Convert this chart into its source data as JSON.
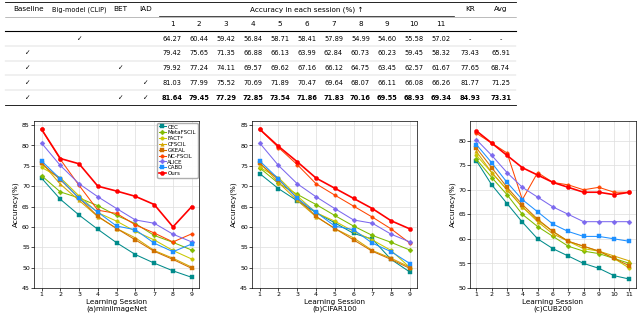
{
  "table": {
    "col1_labels": [
      "Baseline",
      "Big-model (CLIP)",
      "BET",
      "IAD"
    ],
    "session_cols": [
      "1",
      "2",
      "3",
      "4",
      "5",
      "6",
      "7",
      "8",
      "9",
      "10",
      "11"
    ],
    "extra_cols": [
      "KR",
      "Avg"
    ],
    "rows": [
      [
        " ",
        "✓",
        " ",
        " ",
        "64.27",
        "60.44",
        "59.42",
        "56.84",
        "58.71",
        "58.41",
        "57.89",
        "54.99",
        "54.60",
        "55.58",
        "57.02",
        "-",
        "-"
      ],
      [
        "✓",
        " ",
        " ",
        " ",
        "79.42",
        "75.65",
        "71.35",
        "66.88",
        "66.13",
        "63.99",
        "62.84",
        "60.73",
        "60.23",
        "59.45",
        "58.32",
        "73.43",
        "65.91"
      ],
      [
        "✓",
        " ",
        "✓",
        " ",
        "79.92",
        "77.24",
        "74.11",
        "69.57",
        "69.62",
        "67.16",
        "66.12",
        "64.75",
        "63.45",
        "62.57",
        "61.67",
        "77.65",
        "68.74"
      ],
      [
        "✓",
        " ",
        " ",
        "✓",
        "81.03",
        "77.99",
        "75.52",
        "70.69",
        "71.89",
        "70.47",
        "69.64",
        "68.07",
        "66.11",
        "66.08",
        "66.26",
        "81.77",
        "71.25"
      ],
      [
        "✓",
        " ",
        "✓",
        "✓",
        "81.64",
        "79.45",
        "77.29",
        "72.85",
        "73.54",
        "71.86",
        "71.83",
        "70.16",
        "69.55",
        "68.93",
        "69.34",
        "84.93",
        "73.31"
      ]
    ]
  },
  "legend_labels": [
    "CEC",
    "MetaFSCIL",
    "FACT*",
    "CFSCIL",
    "GKEAL",
    "NC-FSCIL",
    "ALICE",
    "CABD",
    "Ours"
  ],
  "legend_colors": [
    "#008B8B",
    "#7FBA00",
    "#C8C800",
    "#D4A800",
    "#D07000",
    "#FF4500",
    "#7B68EE",
    "#1E90FF",
    "#FF0000"
  ],
  "legend_markers": [
    "s",
    "D",
    "o",
    "^",
    "s",
    "o",
    "D",
    "s",
    "o"
  ],
  "miniImageNet": {
    "sessions": [
      1,
      2,
      3,
      4,
      5,
      6,
      7,
      8,
      9
    ],
    "CEC": [
      72.0,
      66.8,
      62.9,
      59.4,
      56.1,
      53.2,
      51.1,
      49.2,
      47.6
    ],
    "MetaFSCIL": [
      72.6,
      68.6,
      67.1,
      65.2,
      62.8,
      60.8,
      57.9,
      56.2,
      54.3
    ],
    "FACT": [
      74.6,
      72.1,
      67.6,
      63.5,
      61.4,
      58.9,
      56.8,
      54.2,
      52.1
    ],
    "CFSCIL": [
      75.8,
      70.5,
      66.5,
      62.5,
      59.6,
      57.3,
      54.2,
      52.3,
      50.1
    ],
    "GKEAL": [
      75.6,
      71.6,
      67.1,
      62.6,
      59.6,
      56.8,
      54.0,
      52.0,
      49.8
    ],
    "NCFSCIL": [
      84.0,
      76.6,
      70.2,
      64.1,
      63.3,
      60.5,
      58.5,
      56.3,
      58.3
    ],
    "ALICE": [
      80.6,
      75.1,
      70.6,
      67.4,
      64.5,
      61.7,
      60.9,
      58.2,
      56.3
    ],
    "CABD": [
      76.2,
      71.8,
      67.0,
      63.6,
      60.2,
      59.3,
      56.0,
      53.9,
      55.8
    ],
    "Ours": [
      84.0,
      76.8,
      75.5,
      70.0,
      68.8,
      67.5,
      65.5,
      60.0,
      65.0
    ],
    "ylim": [
      45,
      86
    ],
    "yticks": [
      45,
      50,
      55,
      60,
      65,
      70,
      75,
      80,
      85
    ],
    "xlabel": "Learning Session\n(a)miniImageNet"
  },
  "CIFAR100": {
    "sessions": [
      1,
      2,
      3,
      4,
      5,
      6,
      7,
      8,
      9
    ],
    "CEC": [
      73.1,
      69.4,
      66.4,
      63.5,
      61.0,
      58.4,
      57.0,
      52.0,
      48.9
    ],
    "MetaFSCIL": [
      74.5,
      70.7,
      68.0,
      65.5,
      62.8,
      60.2,
      57.9,
      56.2,
      54.3
    ],
    "FACT": [
      74.6,
      72.1,
      67.6,
      63.5,
      61.4,
      58.9,
      56.8,
      54.2,
      50.0
    ],
    "CFSCIL": [
      75.8,
      70.9,
      66.5,
      62.5,
      59.6,
      57.3,
      54.2,
      52.3,
      50.1
    ],
    "GKEAL": [
      75.6,
      71.6,
      67.1,
      62.6,
      59.6,
      56.8,
      54.0,
      52.0,
      49.8
    ],
    "NCFSCIL": [
      84.0,
      79.5,
      75.3,
      70.6,
      67.8,
      65.1,
      62.4,
      59.5,
      56.0
    ],
    "ALICE": [
      80.6,
      75.1,
      70.6,
      67.4,
      64.5,
      61.7,
      60.9,
      58.2,
      56.3
    ],
    "CABD": [
      76.2,
      71.8,
      67.0,
      63.6,
      60.2,
      59.3,
      56.0,
      53.9,
      51.0
    ],
    "Ours": [
      84.0,
      79.8,
      76.0,
      72.0,
      69.5,
      67.0,
      64.5,
      61.5,
      59.5
    ],
    "ylim": [
      45,
      86
    ],
    "yticks": [
      45,
      50,
      55,
      60,
      65,
      70,
      75,
      80,
      85
    ],
    "xlabel": "Learning Session\n(b)CIFAR100"
  },
  "CUB200": {
    "sessions": [
      1,
      2,
      3,
      4,
      5,
      6,
      7,
      8,
      9,
      10,
      11
    ],
    "CEC": [
      75.9,
      71.0,
      67.2,
      63.4,
      60.0,
      58.0,
      56.5,
      55.0,
      54.0,
      52.5,
      51.8
    ],
    "MetaFSCIL": [
      76.2,
      72.5,
      69.0,
      65.0,
      62.5,
      60.5,
      58.5,
      57.5,
      57.0,
      56.0,
      55.0
    ],
    "FACT": [
      77.0,
      73.5,
      70.0,
      66.5,
      63.8,
      61.5,
      59.5,
      58.0,
      57.5,
      56.0,
      54.0
    ],
    "CFSCIL": [
      77.8,
      73.5,
      70.0,
      66.5,
      63.5,
      61.0,
      59.5,
      58.5,
      57.5,
      56.5,
      55.5
    ],
    "GKEAL": [
      78.5,
      74.5,
      70.5,
      67.0,
      64.0,
      61.5,
      59.5,
      58.5,
      57.5,
      56.0,
      54.5
    ],
    "NCFSCIL": [
      81.5,
      79.5,
      77.5,
      68.0,
      73.5,
      71.5,
      71.0,
      70.0,
      70.5,
      69.5,
      69.5
    ],
    "ALICE": [
      80.2,
      77.0,
      73.5,
      70.5,
      68.5,
      66.5,
      65.0,
      63.5,
      63.5,
      63.5,
      63.5
    ],
    "CABD": [
      79.2,
      75.5,
      71.5,
      68.0,
      65.5,
      63.0,
      61.5,
      60.5,
      60.5,
      60.0,
      59.5
    ],
    "Ours": [
      82.0,
      79.5,
      77.0,
      74.5,
      73.0,
      71.5,
      70.5,
      69.5,
      69.5,
      69.0,
      69.5
    ],
    "ylim": [
      50,
      84
    ],
    "yticks": [
      50,
      55,
      60,
      65,
      70,
      75,
      80
    ],
    "xlabel": "Learning Session\n(c)CUB200"
  },
  "bg_color": "#FFFFFF",
  "grid_color": "#DDDDDD"
}
